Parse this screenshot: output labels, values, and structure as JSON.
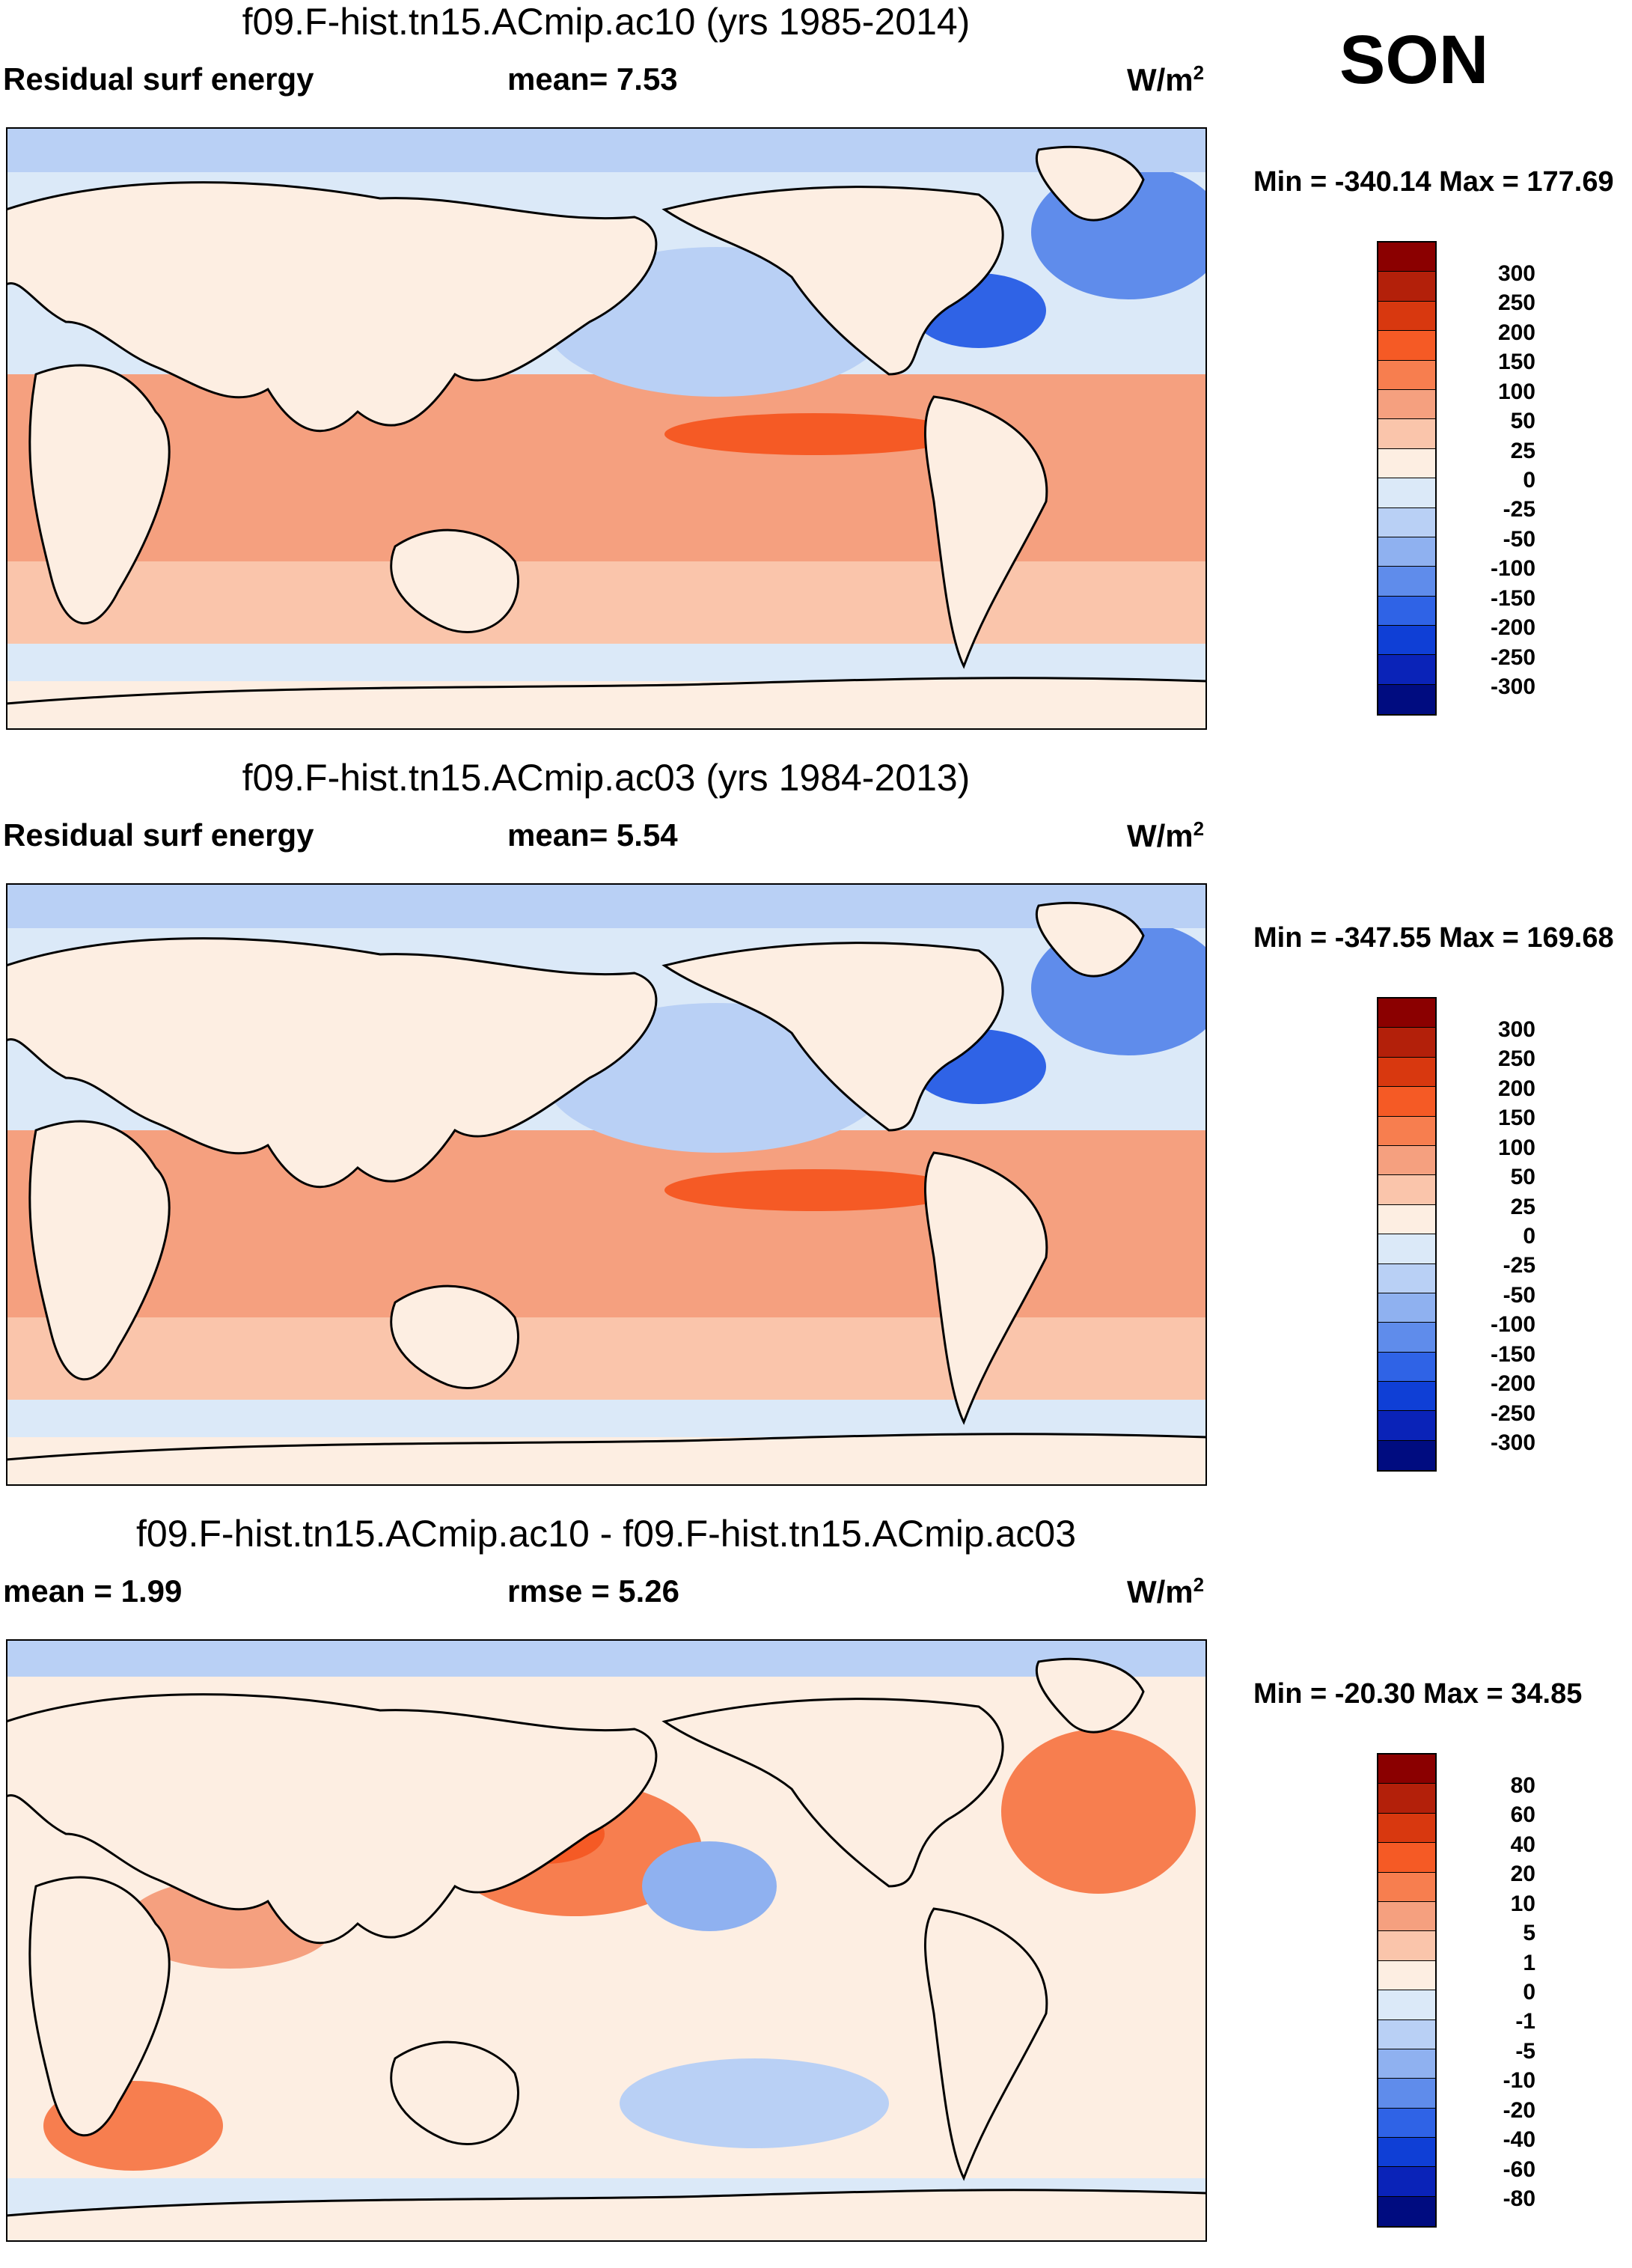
{
  "season": "SON",
  "units": "W/m",
  "units_exp": "2",
  "panels": [
    {
      "title": "f09.F-hist.tn15.ACmip.ac10 (yrs 1985-2014)",
      "left_label": "Residual surf energy",
      "mid_label": "mean=   7.53",
      "min_max": "Min = -340.14 Max = 177.69",
      "levels": [
        "300",
        "250",
        "200",
        "150",
        "100",
        "50",
        "25",
        "0",
        "-25",
        "-50",
        "-100",
        "-150",
        "-200",
        "-250",
        "-300"
      ],
      "colors": [
        "#8b0000",
        "#b3200a",
        "#d8380f",
        "#f55a25",
        "#f77e4f",
        "#f5a07f",
        "#fac5ab",
        "#fdeee2",
        "#dbe9f8",
        "#b9d0f5",
        "#8fb1f0",
        "#5f8ceb",
        "#2f63e6",
        "#0f3fd6",
        "#0a23b8",
        "#000c80"
      ],
      "map_fill": [
        {
          "region": "north-band",
          "level": "-25"
        },
        {
          "region": "tropics",
          "level": "50"
        },
        {
          "region": "equatorial-pacific",
          "level": "150"
        },
        {
          "region": "north-pacific",
          "level": "-50"
        },
        {
          "region": "north-atlantic",
          "level": "-100"
        }
      ]
    },
    {
      "title": "f09.F-hist.tn15.ACmip.ac03 (yrs 1984-2013)",
      "left_label": "Residual surf energy",
      "mid_label": "mean=   5.54",
      "min_max": "Min = -347.55 Max = 169.68",
      "levels": [
        "300",
        "250",
        "200",
        "150",
        "100",
        "50",
        "25",
        "0",
        "-25",
        "-50",
        "-100",
        "-150",
        "-200",
        "-250",
        "-300"
      ],
      "colors": [
        "#8b0000",
        "#b3200a",
        "#d8380f",
        "#f55a25",
        "#f77e4f",
        "#f5a07f",
        "#fac5ab",
        "#fdeee2",
        "#dbe9f8",
        "#b9d0f5",
        "#8fb1f0",
        "#5f8ceb",
        "#2f63e6",
        "#0f3fd6",
        "#0a23b8",
        "#000c80"
      ],
      "map_fill": [
        {
          "region": "north-band",
          "level": "-25"
        },
        {
          "region": "tropics",
          "level": "50"
        },
        {
          "region": "equatorial-pacific",
          "level": "150"
        },
        {
          "region": "north-pacific",
          "level": "-50"
        },
        {
          "region": "north-atlantic",
          "level": "-100"
        }
      ]
    },
    {
      "title": "f09.F-hist.tn15.ACmip.ac10 - f09.F-hist.tn15.ACmip.ac03",
      "left_label": "mean =   1.99",
      "mid_label": "rmse =   5.26",
      "min_max": "Min = -20.30 Max =  34.85",
      "levels": [
        "80",
        "60",
        "40",
        "20",
        "10",
        "5",
        "1",
        "0",
        "-1",
        "-5",
        "-10",
        "-20",
        "-40",
        "-60",
        "-80"
      ],
      "colors": [
        "#8b0000",
        "#b3200a",
        "#d8380f",
        "#f55a25",
        "#f77e4f",
        "#f5a07f",
        "#fac5ab",
        "#fdeee2",
        "#dbe9f8",
        "#b9d0f5",
        "#8fb1f0",
        "#5f8ceb",
        "#2f63e6",
        "#0f3fd6",
        "#0a23b8",
        "#000c80"
      ],
      "map_fill": [
        {
          "region": "north-band",
          "level": "-1"
        },
        {
          "region": "north-pacific",
          "level": "20"
        },
        {
          "region": "north-atlantic",
          "level": "10"
        },
        {
          "region": "tropics",
          "level": "1"
        },
        {
          "region": "south-band",
          "level": "-1"
        }
      ]
    }
  ]
}
